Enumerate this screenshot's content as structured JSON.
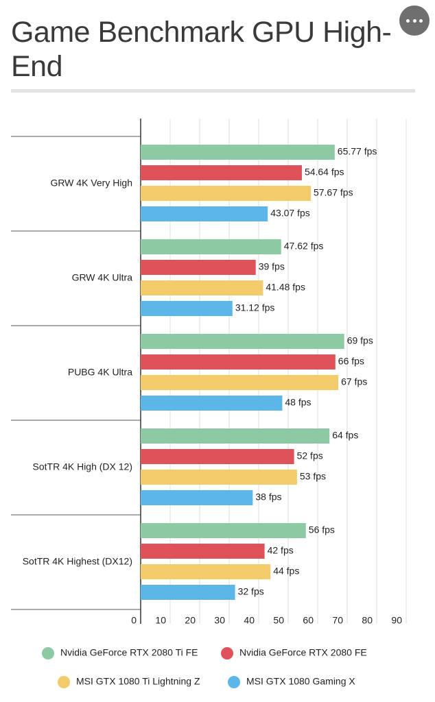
{
  "chart_data": {
    "type": "bar",
    "orientation": "horizontal",
    "title": "Game Benchmark GPU High-End",
    "categories": [
      "GRW 4K Very High",
      "GRW 4K Ultra",
      "PUBG 4K Ultra",
      "SotTR 4K High (DX 12)",
      "SotTR 4K Highest (DX12)"
    ],
    "series": [
      {
        "name": "Nvidia GeForce RTX 2080 Ti FE",
        "color": "#8dc9a3",
        "values": [
          65.77,
          47.62,
          69,
          64,
          56
        ],
        "value_labels": [
          "65.77 fps",
          "47.62 fps",
          "69 fps",
          "64 fps",
          "56 fps"
        ]
      },
      {
        "name": "Nvidia GeForce RTX 2080 FE",
        "color": "#e0525a",
        "values": [
          54.64,
          39,
          66,
          52,
          42
        ],
        "value_labels": [
          "54.64 fps",
          "39 fps",
          "66 fps",
          "52 fps",
          "42 fps"
        ]
      },
      {
        "name": "MSI GTX 1080 Ti Lightning Z",
        "color": "#f2cb6b",
        "values": [
          57.67,
          41.48,
          67,
          53,
          44
        ],
        "value_labels": [
          "57.67 fps",
          "41.48 fps",
          "67 fps",
          "53 fps",
          "44 fps"
        ]
      },
      {
        "name": "MSI GTX 1080 Gaming X",
        "color": "#5db6e8",
        "values": [
          43.07,
          31.12,
          48,
          38,
          32
        ],
        "value_labels": [
          "43.07 fps",
          "31.12 fps",
          "48 fps",
          "38 fps",
          "32 fps"
        ]
      }
    ],
    "xlim": [
      0,
      90
    ],
    "xticks": [
      0,
      10,
      20,
      30,
      40,
      50,
      60,
      70,
      80,
      90
    ],
    "grid": true,
    "legend": "bottom"
  }
}
